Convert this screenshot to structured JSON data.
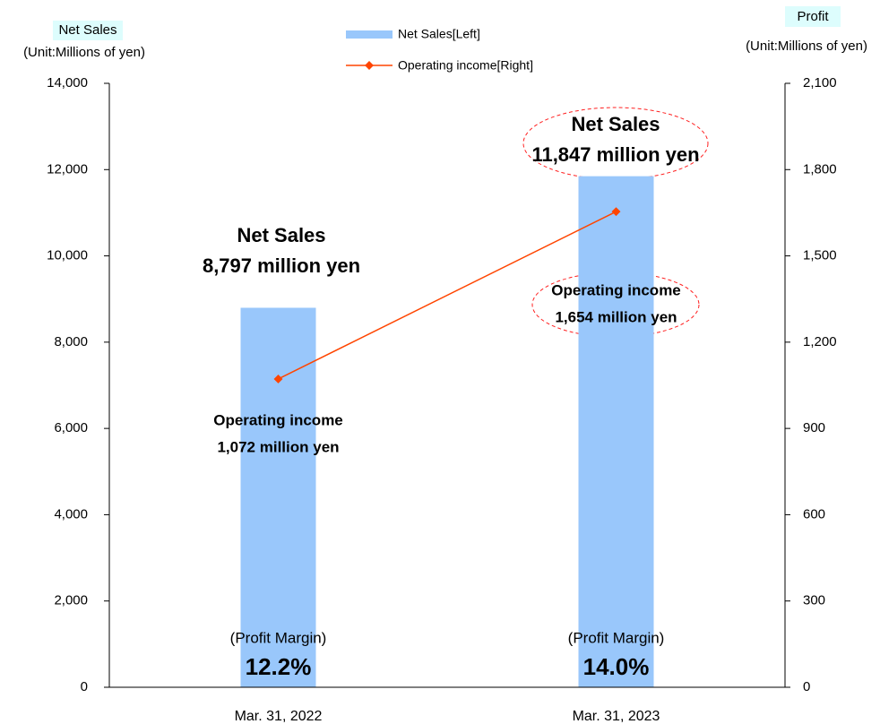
{
  "chart_data": {
    "type": "bar-line",
    "categories": [
      "Mar. 31, 2022",
      "Mar. 31, 2023"
    ],
    "y_title": "Net Sales",
    "y_unit": "(Unit:Millions of yen)",
    "y2_title": "Profit",
    "y2_unit": "(Unit:Millions of yen)",
    "ylim": [
      0,
      14000
    ],
    "yticks": [
      0,
      {
        "value": 2000,
        "label": "2,000"
      },
      {
        "value": 4000,
        "label": "4,000"
      },
      {
        "value": 6000,
        "label": "6,000"
      },
      {
        "value": 8000,
        "label": "8,000"
      },
      {
        "value": 10000,
        "label": "10,000"
      },
      {
        "value": 12000,
        "label": "12,000"
      },
      {
        "value": 14000,
        "label": "14,000"
      }
    ],
    "y2lim": [
      0,
      2100
    ],
    "y2ticks": [
      0,
      300,
      600,
      900,
      {
        "value": 1200,
        "label": "1,200"
      },
      {
        "value": 1500,
        "label": "1,500"
      },
      {
        "value": 1800,
        "label": "1,800"
      },
      {
        "value": 2100,
        "label": "2,100"
      }
    ],
    "series": [
      {
        "name": "Net Sales[Left]",
        "type": "bar",
        "color": "#99c7fb",
        "values": [
          8797,
          11847
        ],
        "label_title": "Net Sales",
        "value_labels": [
          "8,797 million yen",
          "11,847 million yen"
        ]
      },
      {
        "name": "Operating income[Right]",
        "type": "line",
        "axis": "y2",
        "color": "#ff4500",
        "values": [
          1072,
          1654
        ],
        "label_title": "Operating income",
        "value_labels": [
          "1,072 million yen",
          "1,654 million yen"
        ]
      }
    ],
    "profit_margin": {
      "label": "(Profit Margin)",
      "values": [
        12.2,
        14.0
      ],
      "value_labels": [
        "12.2%",
        "14.0%"
      ]
    }
  }
}
